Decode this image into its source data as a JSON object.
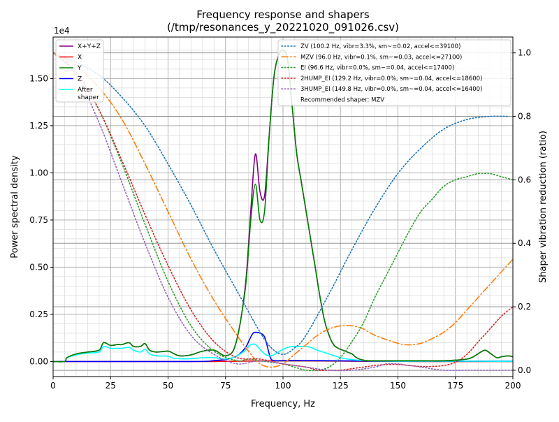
{
  "chart_data": {
    "type": "line",
    "title_line1": "Frequency response and shapers",
    "title_line2": "(/tmp/resonances_y_20221020_091026.csv)",
    "xlabel": "Frequency, Hz",
    "ylabel": "Power spectral density",
    "y2label": "Shaper vibration reduction (ratio)",
    "y_scale_label": "1e4",
    "xlim": [
      0,
      200
    ],
    "ylim": [
      -0.08,
      1.72
    ],
    "y2lim": [
      -0.02,
      1.05
    ],
    "grid": true,
    "x_ticks": [
      0,
      25,
      50,
      75,
      100,
      125,
      150,
      175,
      200
    ],
    "y_ticks": [
      0.0,
      0.25,
      0.5,
      0.75,
      1.0,
      1.25,
      1.5
    ],
    "y_tick_labels": [
      "0.00",
      "0.25",
      "0.50",
      "0.75",
      "1.00",
      "1.25",
      "1.50"
    ],
    "y2_ticks": [
      0.0,
      0.2,
      0.4,
      0.6,
      0.8,
      1.0
    ],
    "y2_tick_labels": [
      "0.0",
      "0.2",
      "0.4",
      "0.6",
      "0.8",
      "1.0"
    ],
    "legend_left": {
      "placement": "top-left",
      "entries": [
        {
          "label": "X+Y+Z",
          "color": "#800080"
        },
        {
          "label": "X",
          "color": "#ff0000"
        },
        {
          "label": "Y",
          "color": "#008000"
        },
        {
          "label": "Z",
          "color": "#0000ff"
        },
        {
          "label": "After shaper",
          "label_lines": [
            "After",
            "shaper"
          ],
          "color": "#00ffff"
        }
      ]
    },
    "legend_right": {
      "placement": "top-right",
      "entries": [
        {
          "label": "ZV (100.2 Hz, vibr=3.3%, sm~=0.02, accel<=39100)",
          "color": "#1f77b4",
          "dash": "dotted"
        },
        {
          "label": "MZV (96.0 Hz, vibr=0.1%, sm~=0.03, accel<=27100)",
          "color": "#ff7f0e",
          "dash": "dashdot"
        },
        {
          "label": "EI (96.6 Hz, vibr=0.0%, sm~=0.04, accel<=17400)",
          "color": "#2ca02c",
          "dash": "dotted"
        },
        {
          "label": "2HUMP_EI (129.2 Hz, vibr=0.0%, sm~=0.04, accel<=18600)",
          "color": "#d62728",
          "dash": "dotted"
        },
        {
          "label": "3HUMP_EI (149.8 Hz, vibr=0.0%, sm~=0.04, accel<=16400)",
          "color": "#9467bd",
          "dash": "dotted"
        },
        {
          "label": "Recommended shaper: MZV",
          "color": "",
          "dash": "none"
        }
      ]
    },
    "series": [
      {
        "name": "X+Y+Z",
        "axis": "left",
        "color": "#800080",
        "width": 1.6,
        "x": [
          0,
          5,
          6,
          10,
          15,
          20,
          22,
          25,
          28,
          30,
          33,
          35,
          38,
          40,
          42,
          45,
          50,
          52,
          55,
          60,
          65,
          70,
          73,
          75,
          78,
          80,
          82,
          84,
          86,
          88,
          90,
          92,
          94,
          96,
          98,
          100,
          102,
          104,
          106,
          108,
          110,
          112,
          114,
          116,
          118,
          120,
          122,
          124,
          126,
          128,
          130,
          132,
          134,
          136,
          140,
          150,
          160,
          170,
          178,
          182,
          186,
          188,
          190,
          193,
          195,
          198,
          200
        ],
        "y": [
          0,
          0,
          0.02,
          0.04,
          0.05,
          0.06,
          0.1,
          0.085,
          0.09,
          0.09,
          0.1,
          0.08,
          0.08,
          0.095,
          0.06,
          0.05,
          0.055,
          0.045,
          0.03,
          0.035,
          0.055,
          0.06,
          0.04,
          0.03,
          0.05,
          0.12,
          0.25,
          0.45,
          0.8,
          1.1,
          0.9,
          0.88,
          1.2,
          1.5,
          1.62,
          1.65,
          1.6,
          1.35,
          1.1,
          0.95,
          0.8,
          0.65,
          0.5,
          0.35,
          0.22,
          0.14,
          0.09,
          0.07,
          0.06,
          0.05,
          0.04,
          0.02,
          0.01,
          0.005,
          0.004,
          0.004,
          0.004,
          0.004,
          0.01,
          0.02,
          0.05,
          0.06,
          0.045,
          0.02,
          0.025,
          0.03,
          0.025
        ]
      },
      {
        "name": "X",
        "axis": "left",
        "color": "#ff0000",
        "width": 1.6,
        "x": [
          0,
          60,
          70,
          80,
          90,
          100,
          110,
          120,
          130,
          140,
          150,
          160,
          170,
          180,
          190,
          200
        ],
        "y": [
          0,
          0,
          0,
          0.002,
          0.003,
          0.004,
          0.004,
          0.003,
          0.002,
          0.001,
          0.001,
          0,
          0,
          0,
          0,
          0
        ]
      },
      {
        "name": "Y",
        "axis": "left",
        "color": "#008000",
        "width": 1.6,
        "x": [
          0,
          5,
          6,
          10,
          15,
          20,
          22,
          25,
          28,
          30,
          33,
          35,
          38,
          40,
          42,
          45,
          50,
          52,
          55,
          60,
          65,
          70,
          73,
          75,
          78,
          80,
          82,
          84,
          86,
          88,
          90,
          92,
          94,
          96,
          98,
          100,
          102,
          104,
          106,
          108,
          110,
          112,
          114,
          116,
          118,
          120,
          122,
          124,
          126,
          128,
          130,
          132,
          134,
          136,
          140,
          150,
          160,
          170,
          178,
          182,
          186,
          188,
          190,
          193,
          195,
          198,
          200
        ],
        "y": [
          0,
          0,
          0.02,
          0.04,
          0.05,
          0.06,
          0.1,
          0.085,
          0.09,
          0.09,
          0.1,
          0.08,
          0.08,
          0.095,
          0.06,
          0.05,
          0.055,
          0.045,
          0.03,
          0.035,
          0.055,
          0.06,
          0.04,
          0.03,
          0.05,
          0.12,
          0.25,
          0.43,
          0.75,
          0.94,
          0.75,
          0.8,
          1.2,
          1.5,
          1.62,
          1.65,
          1.6,
          1.35,
          1.1,
          0.95,
          0.8,
          0.65,
          0.5,
          0.35,
          0.22,
          0.14,
          0.09,
          0.07,
          0.06,
          0.05,
          0.04,
          0.02,
          0.01,
          0.005,
          0.004,
          0.004,
          0.004,
          0.004,
          0.01,
          0.02,
          0.05,
          0.06,
          0.045,
          0.02,
          0.025,
          0.03,
          0.025
        ]
      },
      {
        "name": "Z",
        "axis": "left",
        "color": "#0000ff",
        "width": 1.6,
        "x": [
          0,
          60,
          70,
          75,
          78,
          80,
          82,
          84,
          86,
          87,
          88,
          90,
          92,
          94,
          95,
          97,
          100,
          105,
          110,
          120,
          130,
          140,
          150,
          160,
          170,
          180,
          190,
          200
        ],
        "y": [
          0,
          0,
          0.005,
          0.01,
          0.02,
          0.03,
          0.05,
          0.08,
          0.13,
          0.15,
          0.155,
          0.15,
          0.13,
          0.04,
          0.01,
          0.004,
          0.005,
          0.006,
          0.005,
          0.004,
          0.003,
          0.002,
          0.002,
          0.002,
          0.002,
          0.002,
          0.002,
          0.002
        ]
      },
      {
        "name": "After shaper",
        "axis": "left",
        "color": "#00ffff",
        "width": 1.6,
        "x": [
          0,
          5,
          6,
          10,
          15,
          20,
          22,
          25,
          28,
          30,
          33,
          35,
          38,
          40,
          42,
          45,
          50,
          52,
          55,
          60,
          65,
          70,
          73,
          75,
          78,
          80,
          82,
          84,
          86,
          88,
          90,
          92,
          94,
          96,
          98,
          100,
          102,
          104,
          106,
          108,
          110,
          112,
          115,
          120,
          125,
          130,
          135,
          140,
          150,
          160,
          170,
          180,
          190,
          200
        ],
        "y": [
          0,
          0,
          0.02,
          0.035,
          0.045,
          0.05,
          0.08,
          0.07,
          0.07,
          0.07,
          0.075,
          0.06,
          0.05,
          0.065,
          0.04,
          0.03,
          0.028,
          0.018,
          0.015,
          0.015,
          0.02,
          0.02,
          0.015,
          0.013,
          0.02,
          0.03,
          0.045,
          0.065,
          0.09,
          0.09,
          0.065,
          0.04,
          0.03,
          0.035,
          0.05,
          0.065,
          0.075,
          0.08,
          0.08,
          0.08,
          0.08,
          0.075,
          0.06,
          0.04,
          0.02,
          0.01,
          0.005,
          0.003,
          0.002,
          0.002,
          0.002,
          0.002,
          0.001,
          0.001
        ]
      },
      {
        "name": "ZV (100.2 Hz, vibr=3.3%, sm~=0.02, accel<=39100)",
        "axis": "right",
        "color": "#1f77b4",
        "dash": "dotted",
        "width": 1.6,
        "kind": "zv"
      },
      {
        "name": "MZV (96.0 Hz, vibr=0.1%, sm~=0.03, accel<=27100)",
        "axis": "right",
        "color": "#ff7f0e",
        "dash": "dashdot",
        "width": 1.6,
        "kind": "mzv"
      },
      {
        "name": "EI (96.6 Hz, vibr=0.0%, sm~=0.04, accel<=17400)",
        "axis": "right",
        "color": "#2ca02c",
        "dash": "dotted",
        "width": 1.6,
        "kind": "ei"
      },
      {
        "name": "2HUMP_EI (129.2 Hz, vibr=0.0%, sm~=0.04, accel<=18600)",
        "axis": "right",
        "color": "#d62728",
        "dash": "dotted",
        "width": 1.6,
        "kind": "2hump"
      },
      {
        "name": "3HUMP_EI (149.8 Hz, vibr=0.0%, sm~=0.04, accel<=16400)",
        "axis": "right",
        "color": "#9467bd",
        "dash": "dotted",
        "width": 1.6,
        "kind": "3hump"
      }
    ],
    "shaper_curves": {
      "zv": {
        "x": [
          0,
          10,
          20,
          30,
          40,
          50,
          60,
          70,
          80,
          90,
          95,
          100,
          105,
          110,
          120,
          130,
          140,
          150,
          160,
          170,
          180,
          190,
          198
        ],
        "y": [
          1.0,
          0.97,
          0.93,
          0.86,
          0.77,
          0.65,
          0.52,
          0.38,
          0.25,
          0.12,
          0.07,
          0.05,
          0.07,
          0.11,
          0.24,
          0.38,
          0.51,
          0.62,
          0.7,
          0.76,
          0.79,
          0.8,
          0.8
        ]
      },
      "mzv": {
        "x": [
          0,
          10,
          20,
          30,
          40,
          50,
          60,
          70,
          80,
          85,
          90,
          95,
          100,
          105,
          110,
          115,
          120,
          125,
          130,
          135,
          140,
          150,
          155,
          160,
          165,
          170,
          175,
          180,
          185,
          190,
          195,
          200
        ],
        "y": [
          1.0,
          0.96,
          0.89,
          0.79,
          0.65,
          0.5,
          0.35,
          0.22,
          0.11,
          0.06,
          0.02,
          0.01,
          0.02,
          0.05,
          0.08,
          0.11,
          0.13,
          0.14,
          0.14,
          0.13,
          0.11,
          0.085,
          0.08,
          0.085,
          0.1,
          0.12,
          0.15,
          0.19,
          0.23,
          0.27,
          0.31,
          0.35
        ]
      },
      "ei": {
        "x": [
          0,
          10,
          20,
          30,
          40,
          50,
          60,
          70,
          80,
          85,
          90,
          95,
          100,
          105,
          110,
          115,
          120,
          125,
          130,
          135,
          140,
          145,
          150,
          155,
          160,
          165,
          170,
          175,
          180,
          185,
          188,
          190,
          195,
          200
        ],
        "y": [
          1.0,
          0.94,
          0.82,
          0.65,
          0.46,
          0.28,
          0.14,
          0.06,
          0.03,
          0.035,
          0.03,
          0.025,
          0.02,
          0.01,
          0.0,
          0.0,
          0.01,
          0.04,
          0.09,
          0.15,
          0.23,
          0.3,
          0.37,
          0.44,
          0.5,
          0.54,
          0.58,
          0.6,
          0.61,
          0.62,
          0.62,
          0.62,
          0.61,
          0.6
        ]
      },
      "2hump": {
        "x": [
          0,
          10,
          20,
          30,
          40,
          50,
          60,
          70,
          80,
          90,
          100,
          110,
          115,
          120,
          125,
          130,
          135,
          140,
          145,
          150,
          155,
          160,
          165,
          170,
          175,
          180,
          185,
          190,
          195,
          200
        ],
        "y": [
          1.0,
          0.94,
          0.82,
          0.66,
          0.49,
          0.33,
          0.19,
          0.09,
          0.04,
          0.035,
          0.02,
          0.01,
          0.0,
          0.0,
          0.0,
          0.005,
          0.01,
          0.015,
          0.018,
          0.018,
          0.015,
          0.012,
          0.012,
          0.015,
          0.025,
          0.05,
          0.09,
          0.13,
          0.17,
          0.2
        ]
      },
      "3hump": {
        "x": [
          0,
          10,
          20,
          30,
          40,
          50,
          60,
          70,
          80,
          90,
          100,
          110,
          120,
          130,
          140,
          145,
          150,
          155,
          160,
          170,
          180,
          190,
          200
        ],
        "y": [
          1.0,
          0.93,
          0.78,
          0.59,
          0.4,
          0.23,
          0.11,
          0.05,
          0.02,
          0.03,
          0.02,
          0.01,
          0.0,
          0.0,
          0.01,
          0.02,
          0.02,
          0.015,
          0.01,
          0.0,
          0.0,
          0.0,
          0.0
        ]
      }
    }
  }
}
